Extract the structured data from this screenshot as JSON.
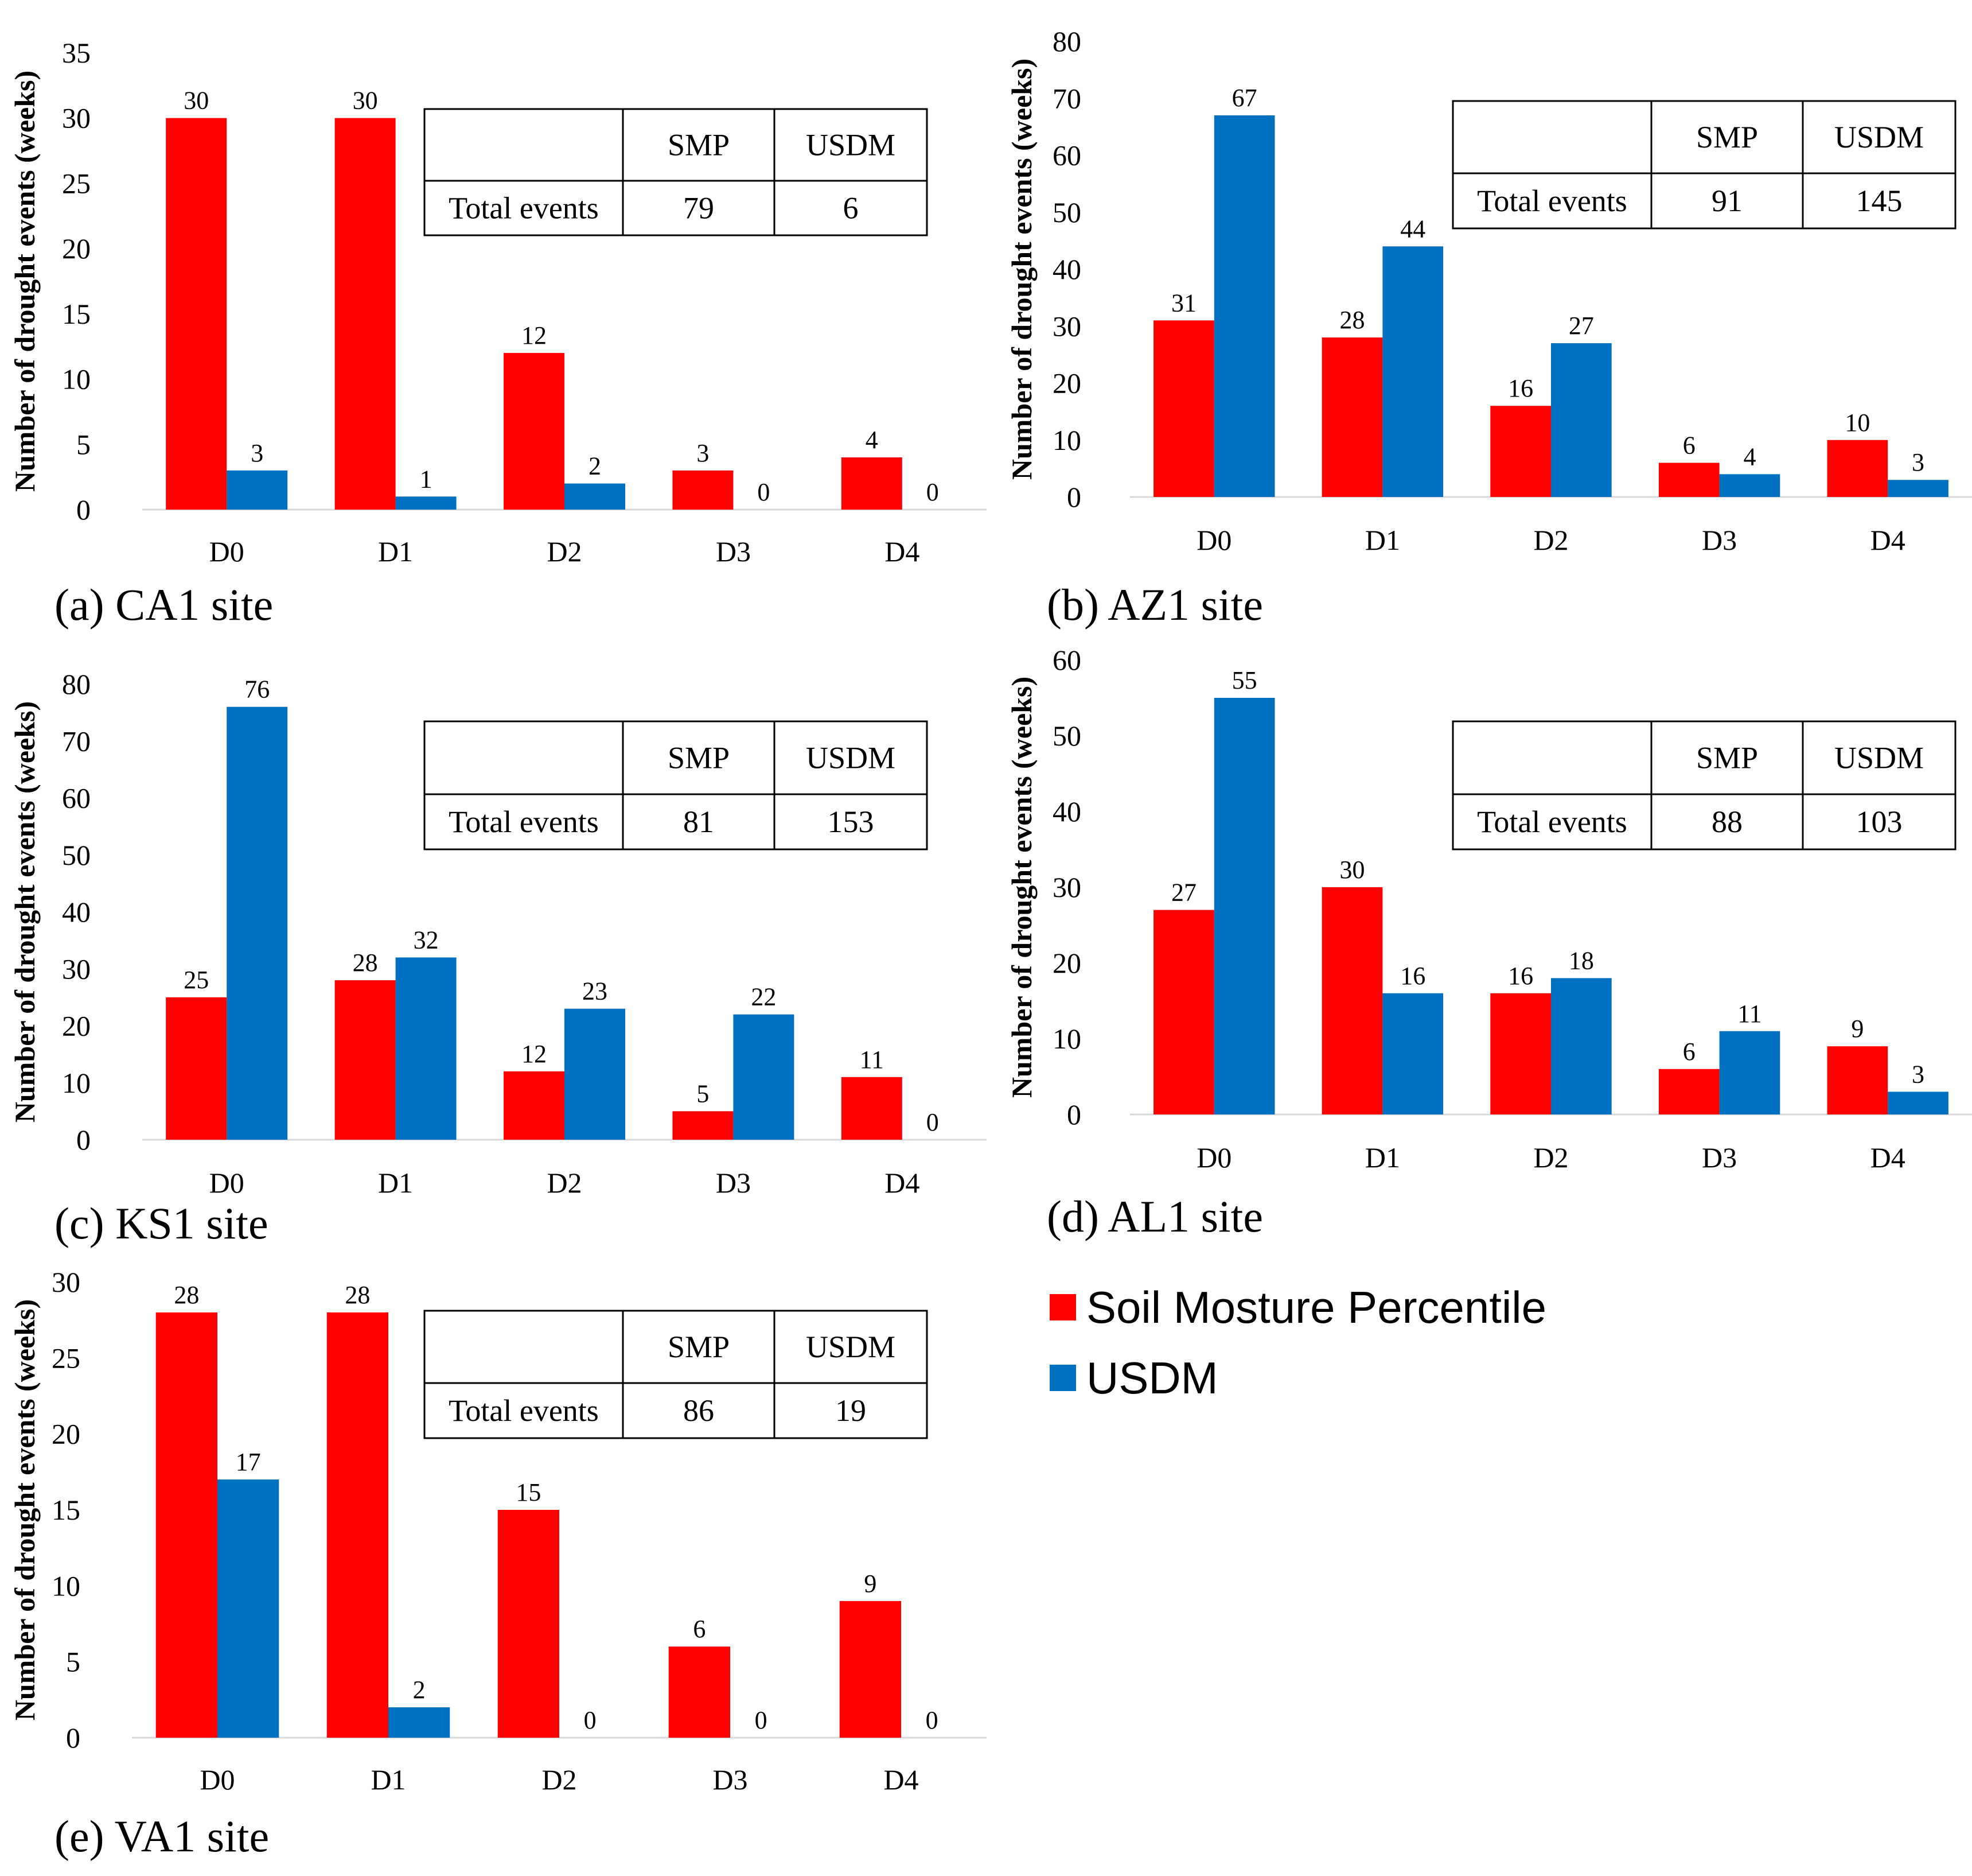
{
  "figure": {
    "legend": [
      {
        "name": "Soil Mosture Percentile",
        "color": "#ff0000"
      },
      {
        "name": "USDM",
        "color": "#0070c0"
      }
    ],
    "table_headers": [
      "",
      "SMP",
      "USDM"
    ],
    "table_row_label": "Total events"
  },
  "chart_data": [
    {
      "type": "bar",
      "caption": "(a) CA1 site",
      "ylabel": "Number of drought events (weeks)",
      "categories": [
        "D0",
        "D1",
        "D2",
        "D3",
        "D4"
      ],
      "ylim": [
        0,
        35
      ],
      "yticks": [
        0,
        5,
        10,
        15,
        20,
        25,
        30,
        35
      ],
      "series": [
        {
          "name": "Soil Mosture Percentile",
          "color": "#ff0000",
          "values": [
            30,
            30,
            12,
            3,
            4
          ]
        },
        {
          "name": "USDM",
          "color": "#0070c0",
          "values": [
            3,
            1,
            2,
            0,
            0
          ]
        }
      ],
      "table": {
        "smp": "79",
        "usdm": "6"
      }
    },
    {
      "type": "bar",
      "caption": "(b) AZ1 site",
      "ylabel": "Number of drought events (weeks)",
      "categories": [
        "D0",
        "D1",
        "D2",
        "D3",
        "D4"
      ],
      "ylim": [
        0,
        80
      ],
      "yticks": [
        0,
        10,
        20,
        30,
        40,
        50,
        60,
        70,
        80
      ],
      "series": [
        {
          "name": "Soil Mosture Percentile",
          "color": "#ff0000",
          "values": [
            31,
            28,
            16,
            6,
            10
          ]
        },
        {
          "name": "USDM",
          "color": "#0070c0",
          "values": [
            67,
            44,
            27,
            4,
            3
          ]
        }
      ],
      "table": {
        "smp": "91",
        "usdm": "145"
      }
    },
    {
      "type": "bar",
      "caption": "(c) KS1 site",
      "ylabel": "Number of drought events (weeks)",
      "categories": [
        "D0",
        "D1",
        "D2",
        "D3",
        "D4"
      ],
      "ylim": [
        0,
        80
      ],
      "yticks": [
        0,
        10,
        20,
        30,
        40,
        50,
        60,
        70,
        80
      ],
      "series": [
        {
          "name": "Soil Mosture Percentile",
          "color": "#ff0000",
          "values": [
            25,
            28,
            12,
            5,
            11
          ]
        },
        {
          "name": "USDM",
          "color": "#0070c0",
          "values": [
            76,
            32,
            23,
            22,
            0
          ]
        }
      ],
      "table": {
        "smp": "81",
        "usdm": "153"
      }
    },
    {
      "type": "bar",
      "caption": "(d) AL1 site",
      "ylabel": "Number of drought events (weeks)",
      "categories": [
        "D0",
        "D1",
        "D2",
        "D3",
        "D4"
      ],
      "ylim": [
        0,
        60
      ],
      "yticks": [
        0,
        10,
        20,
        30,
        40,
        50,
        60
      ],
      "series": [
        {
          "name": "Soil Mosture Percentile",
          "color": "#ff0000",
          "values": [
            27,
            30,
            16,
            6,
            9
          ]
        },
        {
          "name": "USDM",
          "color": "#0070c0",
          "values": [
            55,
            16,
            18,
            11,
            3
          ]
        }
      ],
      "table": {
        "smp": "88",
        "usdm": "103"
      }
    },
    {
      "type": "bar",
      "caption": "(e) VA1 site",
      "ylabel": "Number of drought events (weeks)",
      "categories": [
        "D0",
        "D1",
        "D2",
        "D3",
        "D4"
      ],
      "ylim": [
        0,
        30
      ],
      "yticks": [
        0,
        5,
        10,
        15,
        20,
        25,
        30
      ],
      "series": [
        {
          "name": "Soil Mosture Percentile",
          "color": "#ff0000",
          "values": [
            28,
            28,
            15,
            6,
            9
          ]
        },
        {
          "name": "USDM",
          "color": "#0070c0",
          "values": [
            17,
            2,
            0,
            0,
            0
          ]
        }
      ],
      "table": {
        "smp": "86",
        "usdm": "19"
      }
    }
  ]
}
